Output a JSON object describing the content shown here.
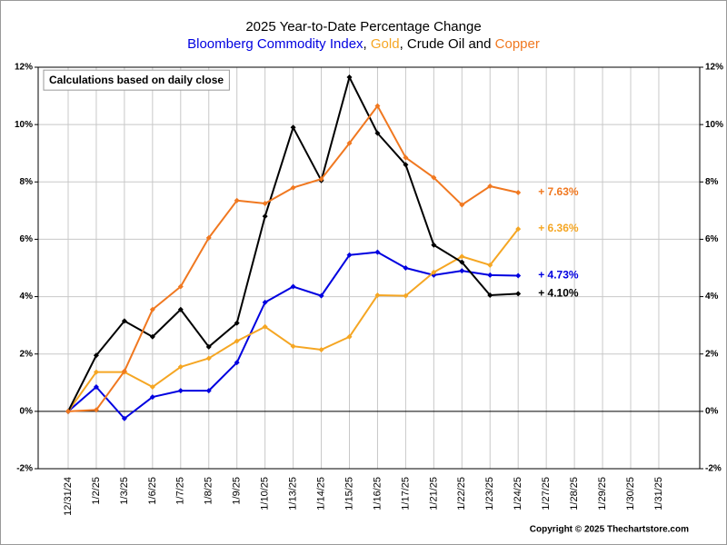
{
  "chart_data": {
    "type": "line",
    "title": "2025 Year-to-Date Percentage Change",
    "subtitle_separators": [
      ", ",
      ", ",
      " and "
    ],
    "annotation": "Calculations based on daily close",
    "copyright": "Copyright © 2025 Thechartstore.com",
    "categories": [
      "12/31/24",
      "1/2/25",
      "1/3/25",
      "1/6/25",
      "1/7/25",
      "1/8/25",
      "1/9/25",
      "1/10/25",
      "1/13/25",
      "1/14/25",
      "1/15/25",
      "1/16/25",
      "1/17/25",
      "1/21/25",
      "1/22/25",
      "1/23/25",
      "1/24/25",
      "1/27/25",
      "1/28/25",
      "1/29/25",
      "1/30/25",
      "1/31/25"
    ],
    "series": [
      {
        "name": "Bloomberg Commodity Index",
        "color": "#0000e0",
        "values": [
          0,
          0.85,
          -0.25,
          0.5,
          0.72,
          0.72,
          1.7,
          3.8,
          4.35,
          4.03,
          5.45,
          5.55,
          5.0,
          4.75,
          4.9,
          4.75,
          4.73,
          null,
          null,
          null,
          null,
          null
        ],
        "value_labels": [
          null,
          null,
          null,
          null,
          null,
          null,
          null,
          null,
          null,
          null,
          null,
          null,
          null,
          null,
          null,
          null,
          "+ 4.73%",
          null,
          null,
          null,
          null,
          null
        ]
      },
      {
        "name": "Gold",
        "color": "#f5a623",
        "values": [
          0,
          1.37,
          1.37,
          0.85,
          1.55,
          1.85,
          2.45,
          2.95,
          2.27,
          2.15,
          2.6,
          4.05,
          4.03,
          4.85,
          5.4,
          5.1,
          6.36,
          null,
          null,
          null,
          null,
          null
        ],
        "value_labels": [
          null,
          null,
          null,
          null,
          null,
          null,
          null,
          null,
          null,
          null,
          null,
          null,
          null,
          null,
          null,
          null,
          "+ 6.36%",
          null,
          null,
          null,
          null,
          null
        ]
      },
      {
        "name": "Crude Oil",
        "color": "#000000",
        "values": [
          0,
          1.95,
          3.15,
          2.6,
          3.55,
          2.25,
          3.08,
          6.8,
          9.9,
          8.05,
          11.65,
          9.7,
          8.6,
          5.8,
          5.2,
          4.05,
          4.1,
          null,
          null,
          null,
          null,
          null
        ],
        "value_labels": [
          null,
          null,
          null,
          null,
          null,
          null,
          null,
          null,
          null,
          null,
          null,
          null,
          null,
          null,
          null,
          null,
          "+ 4.10%",
          null,
          null,
          null,
          null,
          null
        ]
      },
      {
        "name": "Copper",
        "color": "#f07820",
        "values": [
          0,
          0.05,
          1.4,
          3.55,
          4.35,
          6.05,
          7.35,
          7.25,
          7.8,
          8.1,
          9.35,
          10.65,
          8.85,
          8.15,
          7.2,
          7.85,
          7.63,
          null,
          null,
          null,
          null,
          null
        ],
        "value_labels": [
          null,
          null,
          null,
          null,
          null,
          null,
          null,
          null,
          null,
          null,
          null,
          null,
          null,
          null,
          null,
          null,
          "+ 7.63%",
          null,
          null,
          null,
          null,
          null
        ]
      }
    ],
    "ylim": [
      -2,
      12
    ],
    "yticks": [
      {
        "value": -2,
        "label": "-2%"
      },
      {
        "value": 0,
        "label": "0%"
      },
      {
        "value": 2,
        "label": "2%"
      },
      {
        "value": 4,
        "label": "4%"
      },
      {
        "value": 6,
        "label": "6%"
      },
      {
        "value": 8,
        "label": "8%"
      },
      {
        "value": 10,
        "label": "10%"
      },
      {
        "value": 12,
        "label": "12%"
      }
    ],
    "y2lim": [
      -2,
      12
    ],
    "y2ticks": [
      {
        "value": -2,
        "label": "-2%"
      },
      {
        "value": 0,
        "label": "0%"
      },
      {
        "value": 2,
        "label": "2%"
      },
      {
        "value": 4,
        "label": "4%"
      },
      {
        "value": 6,
        "label": "6%"
      },
      {
        "value": 8,
        "label": "8%"
      },
      {
        "value": 10,
        "label": "10%"
      },
      {
        "value": 12,
        "label": "12%"
      }
    ],
    "grid": true
  }
}
